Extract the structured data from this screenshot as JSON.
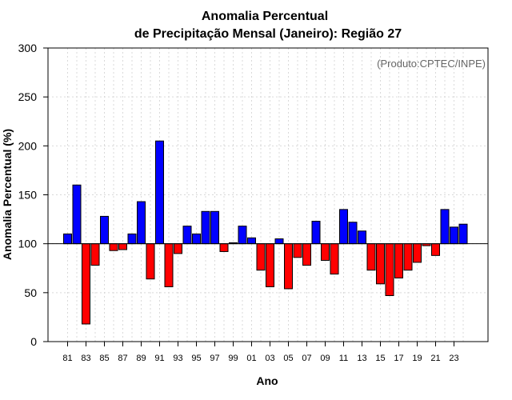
{
  "chart_data": {
    "type": "bar",
    "title_line1": "Anomalia Percentual",
    "title_line2": "de Precipitação Mensal (Janeiro): Região 27",
    "xlabel": "Ano",
    "ylabel": "Anomalia Percentual (%)",
    "annotation": "(Produto:CPTEC/INPE)",
    "ylim": [
      0,
      300
    ],
    "yticks": [
      "0",
      "50",
      "100",
      "150",
      "200",
      "250",
      "300"
    ],
    "baseline": 100,
    "years": [
      81,
      82,
      83,
      84,
      85,
      86,
      87,
      88,
      89,
      90,
      91,
      92,
      93,
      94,
      95,
      96,
      97,
      98,
      99,
      0,
      1,
      2,
      3,
      4,
      5,
      6,
      7,
      8,
      9,
      10,
      11,
      12,
      13,
      14,
      15,
      16,
      17,
      18,
      19,
      20,
      21,
      22,
      23,
      24
    ],
    "xticks": [
      "81",
      "83",
      "85",
      "87",
      "89",
      "91",
      "93",
      "95",
      "97",
      "99",
      "01",
      "03",
      "05",
      "07",
      "09",
      "11",
      "13",
      "15",
      "17",
      "19",
      "21",
      "23"
    ],
    "values": [
      110,
      160,
      18,
      78,
      128,
      93,
      94,
      110,
      143,
      64,
      205,
      56,
      90,
      118,
      110,
      133,
      133,
      92,
      101,
      118,
      106,
      73,
      56,
      105,
      54,
      86,
      78,
      123,
      83,
      69,
      135,
      122,
      113,
      73,
      59,
      47,
      65,
      73,
      81,
      98,
      88,
      135,
      117,
      120
    ],
    "colors": {
      "above": "#0000ff",
      "below": "#ff0000"
    },
    "grid": true
  }
}
